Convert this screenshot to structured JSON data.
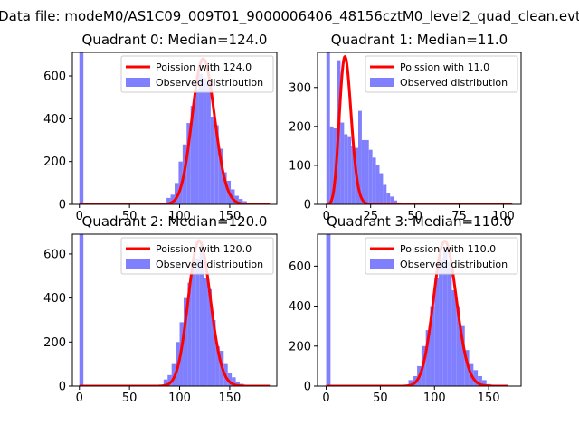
{
  "figure": {
    "suptitle": "Data file: modeM0/AS1C09_009T01_9000006406_48156cztM0_level2_quad_clean.evt"
  },
  "colors": {
    "poisson_line": "#ff0000",
    "histogram": "#8080ff",
    "axes": "#000000"
  },
  "chart_data": [
    {
      "type": "bar",
      "title": "Quadrant 0: Median=124.0",
      "xlabel": "",
      "ylabel": "",
      "xlim": [
        -7,
        197
      ],
      "ylim": [
        0,
        710
      ],
      "xticks": [
        0,
        50,
        100,
        150
      ],
      "yticks": [
        0,
        200,
        400,
        600
      ],
      "grid": false,
      "legend": {
        "placement": "top-right",
        "entries": [
          "Poission with 124.0",
          "Observed distribution"
        ]
      },
      "series": [
        {
          "name": "Observed distribution",
          "kind": "histogram",
          "bins": [
            [
              0,
              4,
              710
            ],
            [
              83,
              87,
              5
            ],
            [
              87,
              91,
              30
            ],
            [
              91,
              95,
              45
            ],
            [
              95,
              99,
              100
            ],
            [
              99,
              103,
              200
            ],
            [
              103,
              107,
              280
            ],
            [
              107,
              111,
              380
            ],
            [
              111,
              115,
              460
            ],
            [
              115,
              119,
              540
            ],
            [
              119,
              123,
              610
            ],
            [
              123,
              127,
              590
            ],
            [
              127,
              131,
              560
            ],
            [
              131,
              135,
              410
            ],
            [
              135,
              139,
              370
            ],
            [
              139,
              143,
              260
            ],
            [
              143,
              147,
              150
            ],
            [
              147,
              151,
              110
            ],
            [
              151,
              155,
              70
            ],
            [
              155,
              159,
              40
            ],
            [
              159,
              163,
              25
            ],
            [
              163,
              167,
              15
            ],
            [
              167,
              171,
              8
            ],
            [
              171,
              175,
              5
            ]
          ]
        },
        {
          "name": "Poission with 124.0",
          "kind": "poisson",
          "mu": 124.0,
          "peak": 680,
          "x_range": [
            0,
            190
          ]
        }
      ]
    },
    {
      "type": "bar",
      "title": "Quadrant 1: Median=11.0",
      "xlabel": "",
      "ylabel": "",
      "xlim": [
        -5,
        110
      ],
      "ylim": [
        0,
        390
      ],
      "xticks": [
        0,
        25,
        50,
        75,
        100
      ],
      "yticks": [
        0,
        100,
        200,
        300
      ],
      "grid": false,
      "legend": {
        "placement": "top-right",
        "entries": [
          "Poission with 11.0",
          "Observed distribution"
        ]
      },
      "series": [
        {
          "name": "Observed distribution",
          "kind": "histogram",
          "bins": [
            [
              0,
              2,
              390
            ],
            [
              2,
              4,
              200
            ],
            [
              4,
              6,
              195
            ],
            [
              6,
              8,
              370
            ],
            [
              8,
              10,
              210
            ],
            [
              10,
              12,
              180
            ],
            [
              12,
              14,
              175
            ],
            [
              14,
              16,
              150
            ],
            [
              16,
              18,
              145
            ],
            [
              18,
              20,
              240
            ],
            [
              20,
              22,
              165
            ],
            [
              22,
              24,
              165
            ],
            [
              24,
              26,
              140
            ],
            [
              26,
              28,
              120
            ],
            [
              28,
              30,
              100
            ],
            [
              30,
              32,
              80
            ],
            [
              32,
              34,
              50
            ],
            [
              34,
              36,
              30
            ],
            [
              36,
              38,
              20
            ],
            [
              38,
              40,
              10
            ],
            [
              40,
              42,
              5
            ]
          ]
        },
        {
          "name": "Poission with 11.0",
          "kind": "poisson",
          "mu": 11.0,
          "peak": 375,
          "x_range": [
            0,
            105
          ]
        }
      ]
    },
    {
      "type": "bar",
      "title": "Quadrant 2: Median=120.0",
      "xlabel": "",
      "ylabel": "",
      "xlim": [
        -7,
        197
      ],
      "ylim": [
        0,
        690
      ],
      "xticks": [
        0,
        50,
        100,
        150
      ],
      "yticks": [
        0,
        200,
        400,
        600
      ],
      "grid": false,
      "legend": {
        "placement": "top-right",
        "entries": [
          "Poission with 120.0",
          "Observed distribution"
        ]
      },
      "series": [
        {
          "name": "Observed distribution",
          "kind": "histogram",
          "bins": [
            [
              0,
              4,
              690
            ],
            [
              80,
              84,
              5
            ],
            [
              84,
              88,
              30
            ],
            [
              88,
              92,
              50
            ],
            [
              92,
              96,
              100
            ],
            [
              96,
              100,
              200
            ],
            [
              100,
              104,
              290
            ],
            [
              104,
              108,
              400
            ],
            [
              108,
              112,
              470
            ],
            [
              112,
              116,
              530
            ],
            [
              116,
              120,
              580
            ],
            [
              120,
              124,
              640
            ],
            [
              124,
              128,
              490
            ],
            [
              128,
              132,
              440
            ],
            [
              132,
              136,
              300
            ],
            [
              136,
              140,
              180
            ],
            [
              140,
              144,
              160
            ],
            [
              144,
              148,
              100
            ],
            [
              148,
              152,
              60
            ],
            [
              152,
              156,
              40
            ],
            [
              156,
              160,
              20
            ],
            [
              160,
              164,
              10
            ],
            [
              164,
              168,
              5
            ]
          ]
        },
        {
          "name": "Poission with 120.0",
          "kind": "poisson",
          "mu": 120.0,
          "peak": 660,
          "x_range": [
            0,
            190
          ]
        }
      ]
    },
    {
      "type": "bar",
      "title": "Quadrant 3: Median=110.0",
      "xlabel": "",
      "ylabel": "",
      "xlim": [
        -8,
        180
      ],
      "ylim": [
        0,
        760
      ],
      "xticks": [
        0,
        50,
        100,
        150
      ],
      "yticks": [
        0,
        200,
        400,
        600
      ],
      "grid": false,
      "legend": {
        "placement": "top-right",
        "entries": [
          "Poission with 110.0",
          "Observed distribution"
        ]
      },
      "series": [
        {
          "name": "Observed distribution",
          "kind": "histogram",
          "bins": [
            [
              0,
              4,
              760
            ],
            [
              72,
              76,
              5
            ],
            [
              76,
              80,
              30
            ],
            [
              80,
              84,
              50
            ],
            [
              84,
              88,
              100
            ],
            [
              88,
              92,
              200
            ],
            [
              92,
              96,
              280
            ],
            [
              96,
              100,
              400
            ],
            [
              100,
              104,
              540
            ],
            [
              104,
              108,
              640
            ],
            [
              108,
              112,
              680
            ],
            [
              112,
              116,
              620
            ],
            [
              116,
              120,
              480
            ],
            [
              120,
              124,
              400
            ],
            [
              124,
              128,
              300
            ],
            [
              128,
              132,
              180
            ],
            [
              132,
              136,
              110
            ],
            [
              136,
              140,
              80
            ],
            [
              140,
              144,
              50
            ],
            [
              144,
              148,
              30
            ],
            [
              148,
              152,
              10
            ],
            [
              152,
              156,
              5
            ]
          ]
        },
        {
          "name": "Poission with 110.0",
          "kind": "poisson",
          "mu": 110.0,
          "peak": 725,
          "x_range": [
            0,
            168
          ]
        }
      ]
    }
  ]
}
